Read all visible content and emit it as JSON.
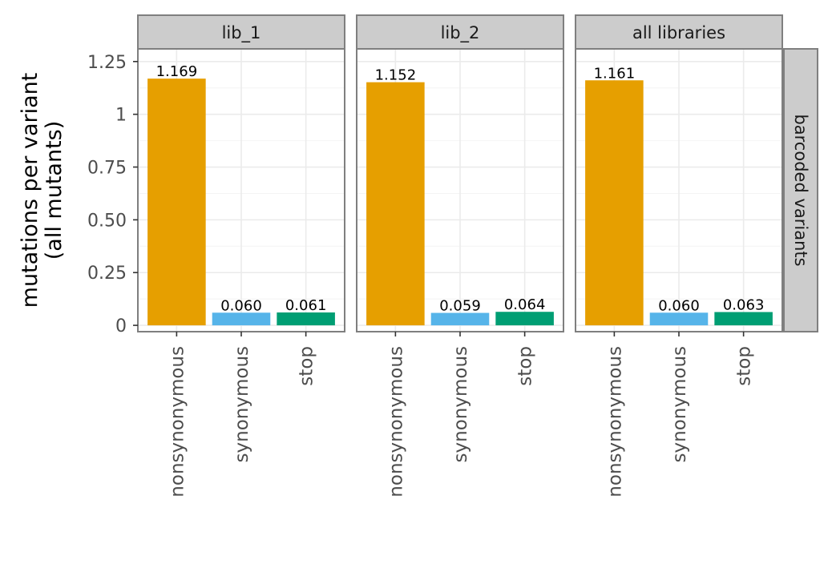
{
  "chart_data": {
    "type": "bar",
    "facets": [
      "lib_1",
      "lib_2",
      "all libraries"
    ],
    "row_strip": "barcoded variants",
    "categories": [
      "nonsynonymous",
      "synonymous",
      "stop"
    ],
    "panels": [
      {
        "facet": "lib_1",
        "values": [
          1.169,
          0.06,
          0.061
        ],
        "labels": [
          "1.169",
          "0.060",
          "0.061"
        ]
      },
      {
        "facet": "lib_2",
        "values": [
          1.152,
          0.059,
          0.064
        ],
        "labels": [
          "1.152",
          "0.059",
          "0.064"
        ]
      },
      {
        "facet": "all libraries",
        "values": [
          1.161,
          0.06,
          0.063
        ],
        "labels": [
          "1.161",
          "0.060",
          "0.063"
        ]
      }
    ],
    "ylabel_line1": "mutations per variant",
    "ylabel_line2": "(all mutants)",
    "xlabel": "",
    "ylim": [
      -0.03,
      1.31
    ],
    "yticks": [
      0,
      0.25,
      0.5,
      0.75,
      1,
      1.25
    ],
    "ytick_labels": [
      "0",
      "0.25",
      "0.50",
      "0.75",
      "1",
      "1.25"
    ],
    "colors": {
      "nonsynonymous": "#E69F00",
      "synonymous": "#56B4E9",
      "stop": "#009E73",
      "strip_fill": "#CCCCCC",
      "panel_border": "#7F7F7F",
      "grid_major": "#EBEBEB",
      "grid_minor": "#F4F4F4",
      "axis_text": "#4D4D4D"
    },
    "grid": true,
    "legend": "none"
  }
}
